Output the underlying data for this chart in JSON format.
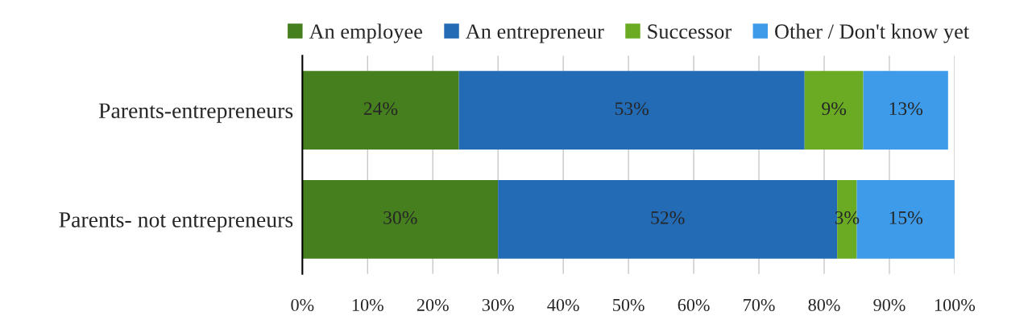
{
  "chart_data": {
    "type": "bar",
    "orientation": "horizontal",
    "stacked": true,
    "categories": [
      "Parents-entrepreneurs",
      "Parents- not entrepreneurs"
    ],
    "series": [
      {
        "name": "An employee",
        "color": "#467f1e",
        "values": [
          24,
          30
        ],
        "value_labels": [
          "24%",
          "30%"
        ]
      },
      {
        "name": "An entrepreneur",
        "color": "#236bb5",
        "values": [
          53,
          52
        ],
        "value_labels": [
          "53%",
          "52%"
        ]
      },
      {
        "name": "Successor",
        "color": "#6aab23",
        "values": [
          9,
          3
        ],
        "value_labels": [
          "9%",
          "3%"
        ]
      },
      {
        "name": "Other / Don't know yet",
        "color": "#3d9be9",
        "values": [
          13,
          15
        ],
        "value_labels": [
          "13%",
          "15%"
        ]
      }
    ],
    "xlim": [
      0,
      100
    ],
    "xticks": [
      {
        "value": 0,
        "label": "0%"
      },
      {
        "value": 10,
        "label": "10%"
      },
      {
        "value": 20,
        "label": "20%"
      },
      {
        "value": 30,
        "label": "30%"
      },
      {
        "value": 40,
        "label": "40%"
      },
      {
        "value": 50,
        "label": "50%"
      },
      {
        "value": 60,
        "label": "60%"
      },
      {
        "value": 70,
        "label": "70%"
      },
      {
        "value": 80,
        "label": "80%"
      },
      {
        "value": 90,
        "label": "90%"
      },
      {
        "value": 100,
        "label": "100%"
      }
    ],
    "grid": "x",
    "legend": "top"
  }
}
